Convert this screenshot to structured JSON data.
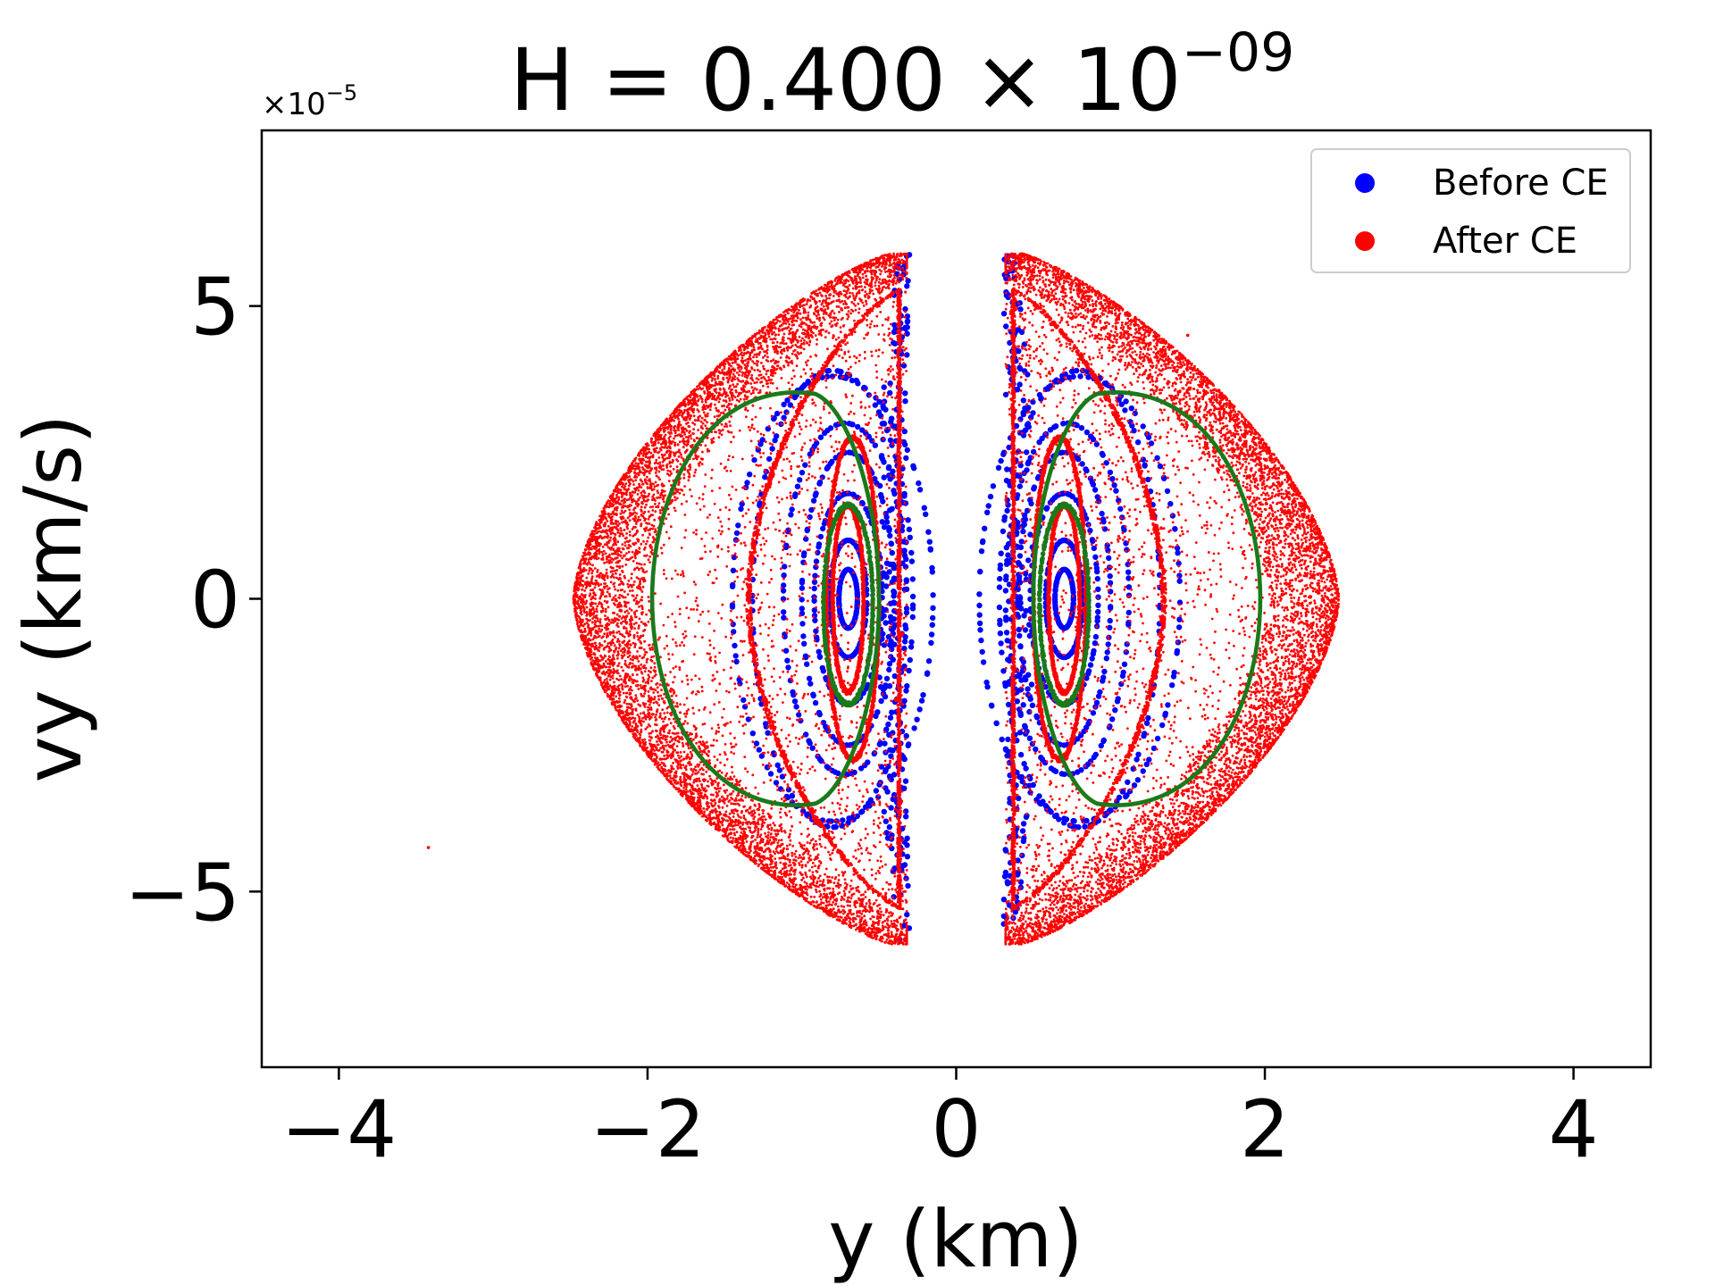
{
  "chart_data": {
    "type": "scatter",
    "title": "H = 0.400 × 10",
    "title_exponent": "−09",
    "xlabel": "y (km)",
    "ylabel": "vy (km/s)",
    "y_offset_text": "×10",
    "y_offset_exponent": "−5",
    "xlim": [
      -4.5,
      4.5
    ],
    "ylim": [
      -8,
      8
    ],
    "x_ticks": [
      {
        "value": -4,
        "label": "−4"
      },
      {
        "value": -2,
        "label": "−2"
      },
      {
        "value": 0,
        "label": "0"
      },
      {
        "value": 2,
        "label": "2"
      },
      {
        "value": 4,
        "label": "4"
      }
    ],
    "y_ticks": [
      {
        "value": -5,
        "label": "−5"
      },
      {
        "value": 0,
        "label": "0"
      },
      {
        "value": 5,
        "label": "5"
      }
    ],
    "grid": false,
    "legend_position": "top-right",
    "legend": [
      {
        "label": "Before CE",
        "color": "#0000ff"
      },
      {
        "label": "After CE",
        "color": "#ff0000"
      }
    ],
    "series": [
      {
        "name": "Before CE",
        "color": "#0000ff",
        "structures": [
          {
            "kind": "island",
            "side": "both",
            "cx": 0.7,
            "cy": 0.0,
            "rx": 0.06,
            "ry": 0.5
          },
          {
            "kind": "island",
            "side": "both",
            "cx": 0.7,
            "cy": 0.0,
            "rx": 0.12,
            "ry": 1.0
          },
          {
            "kind": "island",
            "side": "both",
            "cx": 0.7,
            "cy": 0.0,
            "rx": 0.22,
            "ry": 1.8
          },
          {
            "kind": "island",
            "side": "both",
            "cx": 0.7,
            "cy": 0.0,
            "rx": 0.3,
            "ry": 2.5
          },
          {
            "kind": "island",
            "side": "both",
            "cx": 0.72,
            "cy": 0.0,
            "rx": 0.4,
            "ry": 3.0
          },
          {
            "kind": "island",
            "side": "both",
            "cx": 0.8,
            "cy": 0.0,
            "rx": 0.52,
            "ry": 3.9
          },
          {
            "kind": "island",
            "side": "both",
            "cx": 0.8,
            "cy": 0.0,
            "rx": 0.65,
            "ry": 3.8
          },
          {
            "kind": "band",
            "side": "both",
            "x_inner": 0.28,
            "x_outer": 0.5,
            "vmax": 5.9
          }
        ]
      },
      {
        "name": "After CE",
        "color": "#ff0000",
        "structures": [
          {
            "kind": "island",
            "side": "both",
            "cx": 0.7,
            "cy": 0.0,
            "rx": 0.1,
            "ry": 1.6
          },
          {
            "kind": "island",
            "side": "both",
            "cx": 0.67,
            "cy": 0.0,
            "rx": 0.17,
            "ry": 2.75
          },
          {
            "kind": "teardrop",
            "side": "both",
            "x_inner": 0.36,
            "x_outer": 1.36,
            "vmax": 5.3
          },
          {
            "kind": "chaotic_sea",
            "side": "both",
            "x_inner": 0.32,
            "x_outer": 2.48,
            "vmax": 5.9
          }
        ]
      },
      {
        "color": "#1a7a1a",
        "structures": [
          {
            "kind": "loop",
            "side": "both",
            "x_inner": 0.5,
            "x_outer": 1.97,
            "x_peak": 0.88,
            "vmax": 3.5
          },
          {
            "kind": "island",
            "side": "both",
            "cx": 0.7,
            "cy": -0.1,
            "rx": 0.16,
            "ry": 1.7
          }
        ]
      }
    ]
  }
}
